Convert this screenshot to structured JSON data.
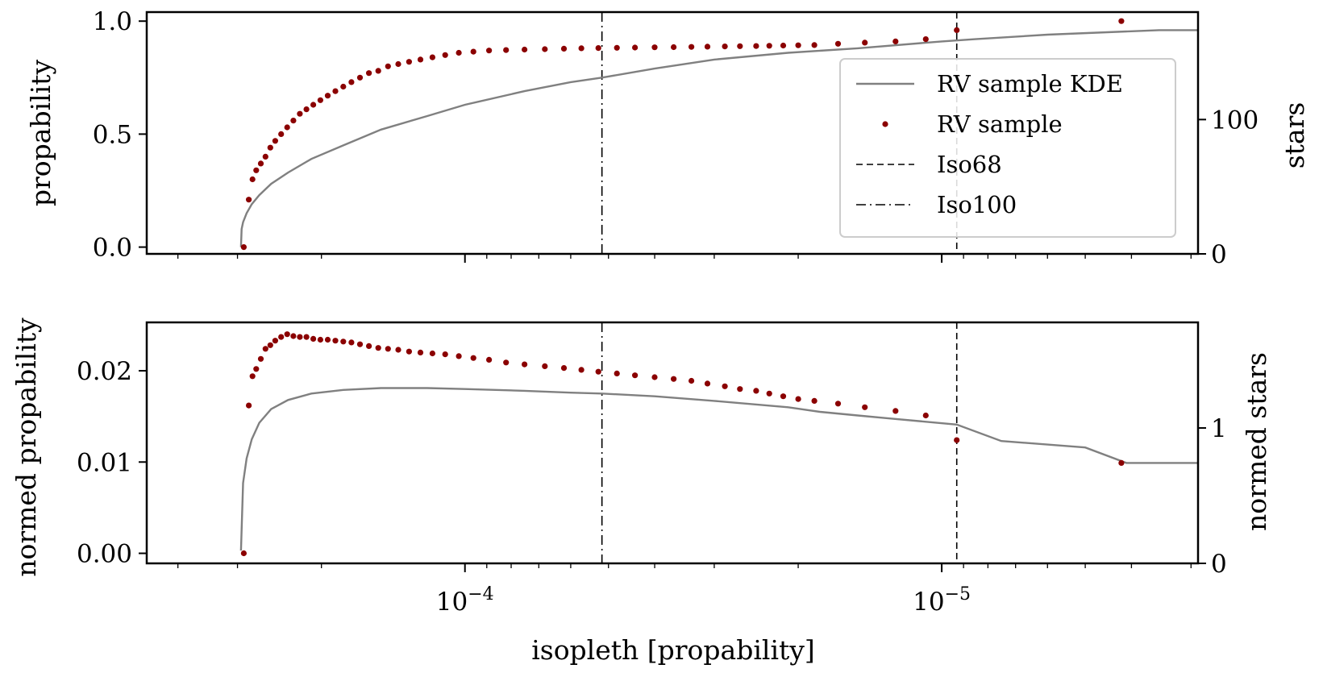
{
  "chart_data": [
    {
      "panel": "top",
      "type": "line",
      "xscale": "log",
      "x_reversed": true,
      "xlim": [
        0.000465,
        2.9e-06
      ],
      "ylim": [
        -0.03,
        1.04
      ],
      "y2lim": [
        0,
        180
      ],
      "ylabel": "propability",
      "y2label": "stars",
      "xticks": [
        {
          "value": 0.0001,
          "base": "10",
          "exp": "−4"
        },
        {
          "value": 1e-05,
          "base": "10",
          "exp": "−5"
        }
      ],
      "yticks": [
        {
          "value": 0,
          "label": "0.0"
        },
        {
          "value": 0.5,
          "label": "0.5"
        },
        {
          "value": 1,
          "label": "1.0"
        }
      ],
      "y2ticks": [
        {
          "value": 0,
          "label": "0"
        },
        {
          "value": 100,
          "label": "100"
        }
      ],
      "vlines": [
        {
          "name": "Iso100",
          "x": 5.16e-05,
          "style": "dashdot"
        },
        {
          "name": "Iso68",
          "x": 9.3e-06,
          "style": "dashed"
        }
      ],
      "legend": {
        "position": "center-right",
        "entries": [
          {
            "label": "RV sample KDE",
            "kind": "line",
            "color": "#808080"
          },
          {
            "label": "RV sample",
            "kind": "dot",
            "color": "#8b0000"
          },
          {
            "label": "Iso68",
            "kind": "dashed",
            "color": "#000000"
          },
          {
            "label": "Iso100",
            "kind": "dashdot",
            "color": "#000000"
          }
        ]
      },
      "series": [
        {
          "name": "RV sample KDE",
          "kind": "line",
          "color": "#808080",
          "x": [
            0.000295,
            0.000294,
            0.000292,
            0.000287,
            0.00028,
            0.00027,
            0.000255,
            0.000235,
            0.00021,
            0.00018,
            0.00015,
            0.00012,
            0.0001,
            7.5e-05,
            6e-05,
            5.16e-05,
            4e-05,
            3e-05,
            2.1e-05,
            1.5e-05,
            1e-05,
            8.5e-06,
            6e-06,
            3.5e-06,
            2.9e-06
          ],
          "y": [
            0.0,
            0.08,
            0.11,
            0.15,
            0.19,
            0.23,
            0.28,
            0.33,
            0.39,
            0.45,
            0.52,
            0.58,
            0.63,
            0.69,
            0.73,
            0.75,
            0.79,
            0.83,
            0.86,
            0.88,
            0.91,
            0.92,
            0.94,
            0.96,
            0.96
          ]
        },
        {
          "name": "RV sample",
          "kind": "dots",
          "color": "#8b0000",
          "x": [
            0.000291,
            0.000284,
            0.000279,
            0.000274,
            0.000268,
            0.000262,
            0.000256,
            0.00025,
            0.000243,
            0.000236,
            0.000229,
            0.000222,
            0.000215,
            0.000208,
            0.000201,
            0.000194,
            0.000187,
            0.00018,
            0.000173,
            0.000166,
            0.000159,
            0.000152,
            0.000145,
            0.000138,
            0.000131,
            0.000124,
            0.000117,
            0.00011,
            0.000103,
            9.6e-05,
            8.9e-05,
            8.2e-05,
            7.5e-05,
            6.8e-05,
            6.2e-05,
            5.7e-05,
            5.25e-05,
            4.8e-05,
            4.4e-05,
            4e-05,
            3.65e-05,
            3.35e-05,
            3.1e-05,
            2.85e-05,
            2.65e-05,
            2.45e-05,
            2.3e-05,
            2.15e-05,
            2e-05,
            1.85e-05,
            1.65e-05,
            1.45e-05,
            1.25e-05,
            1.08e-05,
            9.3e-06,
            4.2e-06
          ],
          "y": [
            0.0,
            0.21,
            0.3,
            0.34,
            0.37,
            0.4,
            0.44,
            0.47,
            0.5,
            0.53,
            0.56,
            0.59,
            0.61,
            0.63,
            0.65,
            0.67,
            0.69,
            0.71,
            0.73,
            0.75,
            0.77,
            0.78,
            0.8,
            0.81,
            0.82,
            0.83,
            0.84,
            0.85,
            0.86,
            0.865,
            0.87,
            0.872,
            0.874,
            0.876,
            0.878,
            0.88,
            0.881,
            0.882,
            0.883,
            0.884,
            0.885,
            0.886,
            0.887,
            0.888,
            0.889,
            0.89,
            0.891,
            0.892,
            0.893,
            0.894,
            0.9,
            0.905,
            0.91,
            0.92,
            0.96,
            1.0
          ]
        }
      ]
    },
    {
      "panel": "bottom",
      "type": "line",
      "xscale": "log",
      "x_reversed": true,
      "xlim": [
        0.000465,
        2.9e-06
      ],
      "ylim": [
        -0.0011,
        0.0253
      ],
      "y2lim": [
        0,
        1.78
      ],
      "xlabel": "isopleth [propability]",
      "ylabel": "normed propability",
      "y2label": "normed stars",
      "xticks": [
        {
          "value": 0.0001,
          "base": "10",
          "exp": "−4"
        },
        {
          "value": 1e-05,
          "base": "10",
          "exp": "−5"
        }
      ],
      "yticks": [
        {
          "value": 0,
          "label": "0.00"
        },
        {
          "value": 0.01,
          "label": "0.01"
        },
        {
          "value": 0.02,
          "label": "0.02"
        }
      ],
      "y2ticks": [
        {
          "value": 0,
          "label": "0"
        },
        {
          "value": 1,
          "label": "1"
        }
      ],
      "vlines": [
        {
          "name": "Iso100",
          "x": 5.16e-05,
          "style": "dashdot"
        },
        {
          "name": "Iso68",
          "x": 9.3e-06,
          "style": "dashed"
        }
      ],
      "series": [
        {
          "name": "RV sample KDE",
          "kind": "line",
          "color": "#808080",
          "x": [
            0.000295,
            0.000292,
            0.000287,
            0.00028,
            0.00027,
            0.000255,
            0.000235,
            0.00021,
            0.00018,
            0.00015,
            0.00012,
            0.0001,
            7.5e-05,
            6e-05,
            5.16e-05,
            4e-05,
            3e-05,
            2.1e-05,
            1.8e-05,
            1.5e-05,
            1.3e-05,
            9.3e-06,
            7.5e-06,
            5e-06,
            4.1e-06,
            2.9e-06
          ],
          "y": [
            0.0003,
            0.0077,
            0.0104,
            0.0125,
            0.0143,
            0.0158,
            0.0168,
            0.0175,
            0.0179,
            0.0181,
            0.0181,
            0.018,
            0.0178,
            0.0176,
            0.0175,
            0.0172,
            0.0167,
            0.016,
            0.0155,
            0.0151,
            0.0148,
            0.0141,
            0.0123,
            0.0116,
            0.0099,
            0.0099
          ]
        },
        {
          "name": "RV sample",
          "kind": "dots",
          "color": "#8b0000",
          "x": [
            0.000291,
            0.000284,
            0.000279,
            0.000274,
            0.000268,
            0.000262,
            0.000256,
            0.00025,
            0.000243,
            0.000236,
            0.000229,
            0.000222,
            0.000215,
            0.000208,
            0.000201,
            0.000194,
            0.000187,
            0.00018,
            0.000173,
            0.000166,
            0.000159,
            0.000152,
            0.000145,
            0.000138,
            0.000131,
            0.000124,
            0.000117,
            0.00011,
            0.000103,
            9.6e-05,
            8.9e-05,
            8.2e-05,
            7.5e-05,
            6.8e-05,
            6.2e-05,
            5.7e-05,
            5.25e-05,
            4.8e-05,
            4.4e-05,
            4e-05,
            3.65e-05,
            3.35e-05,
            3.1e-05,
            2.85e-05,
            2.65e-05,
            2.45e-05,
            2.3e-05,
            2.15e-05,
            2e-05,
            1.85e-05,
            1.65e-05,
            1.45e-05,
            1.25e-05,
            1.08e-05,
            9.3e-06,
            4.2e-06
          ],
          "y": [
            0.0,
            0.0162,
            0.0194,
            0.0202,
            0.0213,
            0.0224,
            0.0228,
            0.0233,
            0.0237,
            0.024,
            0.0238,
            0.0237,
            0.0237,
            0.0235,
            0.0234,
            0.0234,
            0.0233,
            0.0232,
            0.0231,
            0.0229,
            0.0227,
            0.0225,
            0.0224,
            0.0223,
            0.0221,
            0.022,
            0.0219,
            0.0218,
            0.0216,
            0.0214,
            0.0212,
            0.0209,
            0.0207,
            0.0205,
            0.0203,
            0.0201,
            0.0199,
            0.0197,
            0.0195,
            0.0193,
            0.0191,
            0.0189,
            0.0186,
            0.0183,
            0.018,
            0.0178,
            0.0175,
            0.0172,
            0.0169,
            0.0167,
            0.0164,
            0.016,
            0.0156,
            0.0151,
            0.0124,
            0.0099
          ]
        }
      ]
    }
  ]
}
